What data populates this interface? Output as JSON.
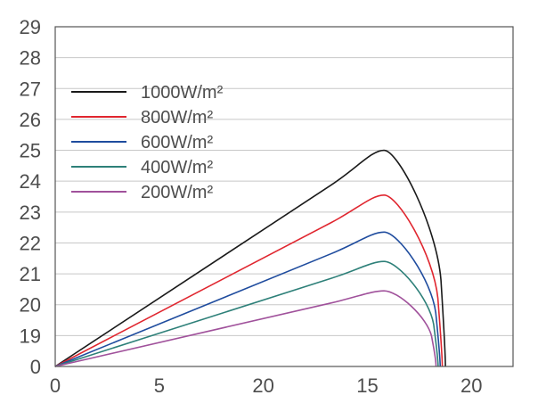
{
  "chart_data": {
    "type": "line",
    "title": "",
    "xlabel": "",
    "ylabel": "",
    "y_tick_labels": [
      "0",
      "19",
      "20",
      "21",
      "22",
      "23",
      "24",
      "25",
      "26",
      "27",
      "28",
      "29"
    ],
    "x_tick_labels": [
      "0",
      "5",
      "20",
      "15",
      "20"
    ],
    "grid": "horizontal",
    "legend_position": "top-left",
    "series": [
      {
        "name": "1000W/m²",
        "color": "#1a1a1a",
        "peak_x": 15.8,
        "peak_y": 25.0,
        "end_x": 18.75
      },
      {
        "name": "800W/m²",
        "color": "#e0262f",
        "peak_x": 15.8,
        "peak_y": 23.55,
        "end_x": 18.6
      },
      {
        "name": "600W/m²",
        "color": "#1f4c9e",
        "peak_x": 15.8,
        "peak_y": 22.35,
        "end_x": 18.5
      },
      {
        "name": "400W/m²",
        "color": "#2e8079",
        "peak_x": 15.8,
        "peak_y": 21.4,
        "end_x": 18.4
      },
      {
        "name": "200W/m²",
        "color": "#a0519b",
        "peak_x": 15.8,
        "peak_y": 20.45,
        "end_x": 18.3
      }
    ]
  }
}
